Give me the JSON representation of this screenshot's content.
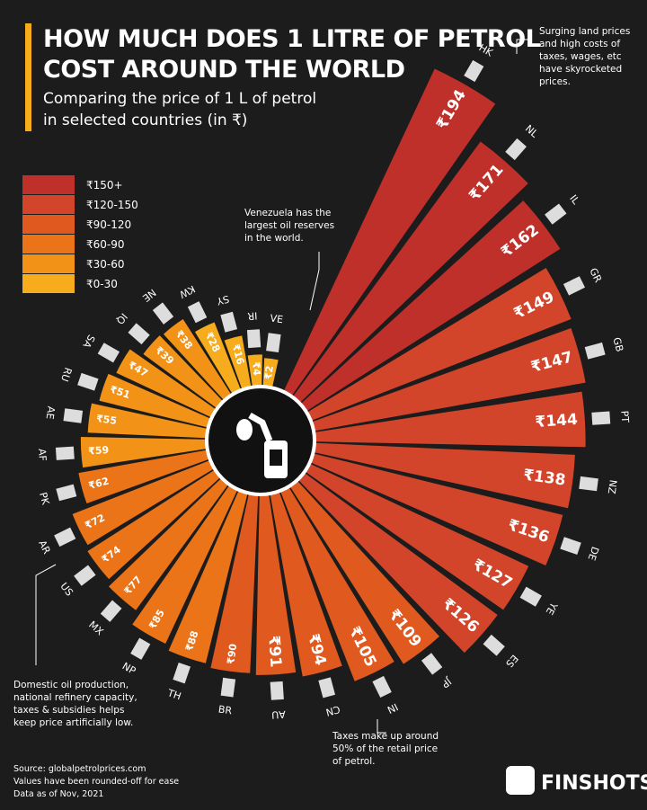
{
  "chart_data": {
    "type": "radial-bar",
    "title": [
      "HOW MUCH DOES 1 LITRE OF PETROL",
      "COST AROUND THE WORLD"
    ],
    "subtitle": [
      "Comparing the price of 1 L of petrol",
      "in selected countries (in ₹)"
    ],
    "categories": [
      "HK",
      "NL",
      "IL",
      "GR",
      "GB",
      "PT",
      "NZ",
      "DE",
      "YE",
      "ES",
      "JP",
      "IN",
      "CN",
      "AU",
      "BR",
      "TH",
      "NP",
      "MX",
      "US",
      "AR",
      "PK",
      "AF",
      "AE",
      "RU",
      "SA",
      "IQ",
      "NE",
      "KW",
      "SY",
      "IR",
      "VE"
    ],
    "values": [
      194,
      171,
      162,
      149,
      147,
      144,
      138,
      136,
      127,
      126,
      109,
      105,
      94,
      91,
      90,
      88,
      85,
      77,
      74,
      72,
      62,
      59,
      55,
      51,
      47,
      39,
      38,
      28,
      16,
      4,
      2
    ],
    "value_labels": [
      "₹194",
      "₹171",
      "₹162",
      "₹149",
      "₹147",
      "₹144",
      "₹138",
      "₹136",
      "₹127",
      "₹126",
      "₹109",
      "₹105",
      "₹94",
      "₹91",
      "₹90",
      "₹88",
      "₹85",
      "₹77",
      "₹74",
      "₹72",
      "₹62",
      "₹59",
      "₹55",
      "₹51",
      "₹47",
      "₹39",
      "₹38",
      "₹28",
      "₹16",
      "₹4",
      "₹2"
    ],
    "colors": [
      "#c0302b",
      "#c0302b",
      "#c0302b",
      "#d2452b",
      "#d2452b",
      "#d2452b",
      "#d2452b",
      "#d2452b",
      "#d2452b",
      "#d2452b",
      "#e0591f",
      "#e0591f",
      "#e0591f",
      "#e0591f",
      "#e0591f",
      "#ea7417",
      "#ea7417",
      "#ea7417",
      "#ea7417",
      "#ea7417",
      "#ea7417",
      "#f29318",
      "#f29318",
      "#f29318",
      "#f29318",
      "#f29318",
      "#f29318",
      "#f6ac1c",
      "#f6ac1c",
      "#f6ac1c",
      "#f6ac1c"
    ],
    "legend": [
      {
        "label": "₹150+",
        "color": "#c0302b"
      },
      {
        "label": "₹120-150",
        "color": "#d2452b"
      },
      {
        "label": "₹90-120",
        "color": "#e0591f"
      },
      {
        "label": "₹60-90",
        "color": "#ea7417"
      },
      {
        "label": "₹30-60",
        "color": "#f29318"
      },
      {
        "label": "₹0-30",
        "color": "#f6ac1c"
      }
    ],
    "annotations": [
      [
        "Surging land prices",
        "and high costs of",
        "taxes, wages, etc",
        "have skyrocketed",
        "prices."
      ],
      [
        "Venezuela has the",
        "largest oil reserves",
        "in the world."
      ],
      [
        "Domestic oil production,",
        "national refinery capacity,",
        "taxes & subsidies helps",
        "keep price artificially low."
      ],
      [
        "Taxes make up around",
        "50% of the retail price",
        "of petrol."
      ]
    ],
    "source": [
      "Source: globalpetrolprices.com",
      "Values have been rounded-off for ease",
      "Data as of Nov, 2021"
    ],
    "brand": "FINSHOTS"
  }
}
